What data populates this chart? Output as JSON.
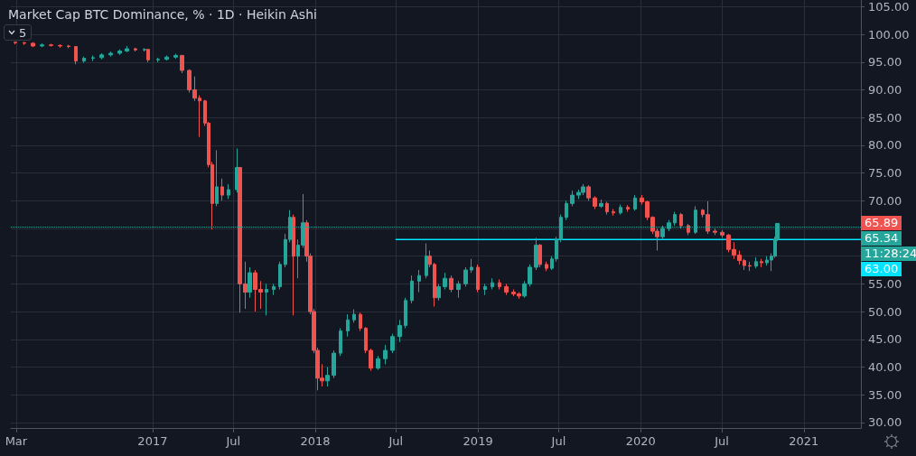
{
  "chart_data": {
    "type": "candlestick",
    "title": "Market Cap BTC Dominance, % · 1D · Heikin Ashi",
    "annotations": [
      "5",
      "11:28:24"
    ],
    "xlim": [
      "2016-02-18",
      "2021-05-09"
    ],
    "xticks": [
      {
        "value": "2016-03-01",
        "label": "Mar"
      },
      {
        "value": "2017-01-01",
        "label": "2017"
      },
      {
        "value": "2017-07-01",
        "label": "Jul"
      },
      {
        "value": "2018-01-01",
        "label": "2018"
      },
      {
        "value": "2018-07-01",
        "label": "Jul"
      },
      {
        "value": "2019-01-01",
        "label": "2019"
      },
      {
        "value": "2019-07-01",
        "label": "Jul"
      },
      {
        "value": "2020-01-01",
        "label": "2020"
      },
      {
        "value": "2020-07-01",
        "label": "Jul"
      },
      {
        "value": "2021-01-01",
        "label": "2021"
      }
    ],
    "ylim": [
      29,
      106.2
    ],
    "yticks": [
      {
        "value": 30,
        "label": "30.00"
      },
      {
        "value": 35,
        "label": "35.00"
      },
      {
        "value": 40,
        "label": "40.00"
      },
      {
        "value": 45,
        "label": "45.00"
      },
      {
        "value": 50,
        "label": "50.00"
      },
      {
        "value": 55,
        "label": "55.00"
      },
      {
        "value": 60,
        "label": null
      },
      {
        "value": 65,
        "label": null
      },
      {
        "value": 70,
        "label": "70.00"
      },
      {
        "value": 75,
        "label": "75.00"
      },
      {
        "value": 80,
        "label": "80.00"
      },
      {
        "value": 85,
        "label": "85.00"
      },
      {
        "value": 90,
        "label": "90.00"
      },
      {
        "value": 95,
        "label": "95.00"
      },
      {
        "value": 100,
        "label": "100.00"
      },
      {
        "value": 105,
        "label": "105.00"
      }
    ],
    "grid": true,
    "ref_lines": [
      {
        "axis": "y",
        "value": 65.34,
        "label": "65.34",
        "color": "#26a69a",
        "line_style": "dotted"
      }
    ],
    "series": [
      {
        "type": "line",
        "x": [
          "2018-07-01",
          "2021-05-09"
        ],
        "values": [
          63,
          63
        ],
        "value_labels": [
          null,
          "63.00"
        ],
        "color": "#00e5ff"
      },
      {
        "x": [
          "2016-02-28",
          "2016-03-19",
          "2016-04-08",
          "2016-04-28",
          "2016-05-18",
          "2016-06-07",
          "2016-06-27",
          "2016-07-13",
          "2016-07-31",
          "2016-08-20",
          "2016-09-09",
          "2016-09-29",
          "2016-10-19",
          "2016-11-04",
          "2016-11-24",
          "2016-12-14",
          "2016-12-22",
          "2017-01-13",
          "2017-02-02",
          "2017-02-22",
          "2017-03-08",
          "2017-03-24",
          "2017-04-05",
          "2017-04-17",
          "2017-04-29",
          "2017-05-07",
          "2017-05-15",
          "2017-05-25",
          "2017-06-06",
          "2017-06-20",
          "2017-07-10",
          "2017-07-16",
          "2017-07-28",
          "2017-08-07",
          "2017-08-19",
          "2017-08-31",
          "2017-09-14",
          "2017-09-30",
          "2017-10-14",
          "2017-10-26",
          "2017-11-05",
          "2017-11-13",
          "2017-11-23",
          "2017-12-05",
          "2017-12-13",
          "2017-12-21",
          "2017-12-29",
          "2018-01-06",
          "2018-01-16",
          "2018-01-28",
          "2018-02-11",
          "2018-02-27",
          "2018-03-15",
          "2018-03-29",
          "2018-04-12",
          "2018-04-24",
          "2018-05-06",
          "2018-05-22",
          "2018-06-07",
          "2018-06-23",
          "2018-07-09",
          "2018-07-23",
          "2018-08-06",
          "2018-08-22",
          "2018-09-07",
          "2018-09-15",
          "2018-09-25",
          "2018-10-05",
          "2018-10-19",
          "2018-11-02",
          "2018-11-18",
          "2018-12-04",
          "2018-12-18",
          "2019-01-01",
          "2019-01-17",
          "2019-02-02",
          "2019-02-18",
          "2019-03-06",
          "2019-03-22",
          "2019-04-03",
          "2019-04-15",
          "2019-04-27",
          "2019-05-11",
          "2019-05-21",
          "2019-06-04",
          "2019-06-16",
          "2019-06-26",
          "2019-07-06",
          "2019-07-18",
          "2019-08-01",
          "2019-08-15",
          "2019-08-25",
          "2019-09-06",
          "2019-09-20",
          "2019-10-04",
          "2019-10-18",
          "2019-11-01",
          "2019-11-17",
          "2019-12-03",
          "2019-12-19",
          "2020-01-04",
          "2020-01-16",
          "2020-01-28",
          "2020-02-07",
          "2020-02-19",
          "2020-03-04",
          "2020-03-18",
          "2020-04-01",
          "2020-04-17",
          "2020-05-03",
          "2020-05-19",
          "2020-05-31",
          "2020-06-16",
          "2020-07-02",
          "2020-07-16",
          "2020-07-28",
          "2020-08-09",
          "2020-08-21",
          "2020-09-02",
          "2020-09-16",
          "2020-09-28",
          "2020-10-10",
          "2020-10-20",
          "2020-10-28",
          "2020-11-03"
        ],
        "value_labels": [
          null,
          null,
          null,
          null,
          null,
          null,
          null,
          null,
          null,
          null,
          null,
          null,
          null,
          null,
          null,
          null,
          null,
          null,
          null,
          null,
          null,
          null,
          null,
          null,
          null,
          null,
          null,
          null,
          null,
          null,
          null,
          null,
          null,
          null,
          null,
          null,
          null,
          null,
          null,
          null,
          null,
          null,
          null,
          null,
          null,
          null,
          null,
          null,
          null,
          null,
          null,
          null,
          null,
          null,
          null,
          null,
          null,
          null,
          null,
          null,
          null,
          null,
          null,
          null,
          null,
          null,
          null,
          null,
          null,
          null,
          null,
          null,
          null,
          null,
          null,
          null,
          null,
          null,
          null,
          null,
          null,
          null,
          null,
          null,
          null,
          null,
          null,
          null,
          null,
          null,
          null,
          null,
          null,
          null,
          null,
          null,
          null,
          null,
          null,
          null,
          null,
          null,
          null,
          null,
          null,
          null,
          null,
          null,
          null,
          null,
          null,
          null,
          null,
          null,
          null,
          null,
          null,
          null,
          null,
          null,
          null,
          null,
          null,
          null,
          "65.89"
        ],
        "ohlc": [
          [
            98.6,
            98.6,
            98.2,
            98.5
          ],
          [
            98.5,
            98.6,
            98.1,
            98.4
          ],
          [
            98.4,
            98.6,
            97.7,
            97.9
          ],
          [
            97.9,
            98.4,
            97.7,
            98.1
          ],
          [
            98.1,
            98.3,
            97.8,
            98.0
          ],
          [
            98.0,
            98.2,
            97.6,
            97.9
          ],
          [
            97.9,
            98.1,
            97.5,
            97.8
          ],
          [
            97.8,
            97.9,
            94.6,
            95.2
          ],
          [
            95.2,
            96.0,
            94.9,
            95.7
          ],
          [
            95.7,
            96.2,
            95.2,
            95.8
          ],
          [
            95.8,
            96.6,
            95.5,
            96.3
          ],
          [
            96.3,
            96.9,
            96.0,
            96.6
          ],
          [
            96.6,
            97.3,
            96.3,
            97.0
          ],
          [
            97.0,
            97.9,
            96.8,
            97.4
          ],
          [
            97.4,
            97.6,
            96.9,
            97.2
          ],
          [
            97.2,
            97.5,
            96.9,
            97.3
          ],
          [
            97.3,
            97.3,
            95.0,
            95.4
          ],
          [
            95.4,
            95.8,
            95.0,
            95.5
          ],
          [
            95.5,
            96.2,
            95.3,
            95.9
          ],
          [
            95.9,
            96.5,
            95.6,
            96.2
          ],
          [
            96.2,
            96.3,
            93.0,
            93.5
          ],
          [
            93.5,
            93.7,
            89.5,
            90.0
          ],
          [
            90.0,
            92.4,
            88.0,
            88.5
          ],
          [
            88.5,
            89.0,
            81.5,
            88.0
          ],
          [
            88.0,
            88.2,
            83.5,
            84.0
          ],
          [
            84.0,
            84.2,
            76.0,
            76.5
          ],
          [
            76.5,
            77.0,
            64.8,
            69.5
          ],
          [
            69.5,
            79.1,
            69.0,
            72.5
          ],
          [
            72.5,
            74.0,
            70.0,
            71.0
          ],
          [
            71.0,
            73.0,
            70.3,
            72.0
          ],
          [
            72.0,
            79.4,
            71.5,
            76.0
          ],
          [
            76.0,
            76.0,
            49.8,
            55.0
          ],
          [
            55.0,
            59.0,
            50.5,
            53.5
          ],
          [
            53.5,
            58.0,
            52.5,
            57.0
          ],
          [
            57.0,
            57.5,
            50.0,
            54.0
          ],
          [
            54.0,
            55.5,
            50.5,
            53.5
          ],
          [
            53.5,
            55.0,
            49.3,
            54.0
          ],
          [
            54.0,
            55.0,
            53.0,
            54.5
          ],
          [
            54.5,
            59.0,
            54.0,
            58.5
          ],
          [
            58.5,
            64.0,
            58.0,
            63.0
          ],
          [
            63.0,
            68.3,
            62.5,
            67.0
          ],
          [
            67.0,
            67.5,
            49.3,
            60.0
          ],
          [
            60.0,
            63.0,
            56.0,
            62.0
          ],
          [
            62.0,
            71.2,
            61.5,
            66.0
          ],
          [
            66.0,
            66.5,
            59.0,
            60.0
          ],
          [
            60.0,
            60.5,
            49.5,
            50.0
          ],
          [
            50.0,
            50.5,
            42.5,
            43.0
          ],
          [
            43.0,
            43.5,
            35.8,
            38.0
          ],
          [
            38.0,
            40.5,
            36.5,
            37.5
          ],
          [
            37.5,
            40.0,
            36.5,
            38.5
          ],
          [
            38.5,
            43.0,
            38.0,
            42.5
          ],
          [
            42.5,
            47.0,
            42.0,
            46.5
          ],
          [
            46.5,
            49.5,
            45.5,
            48.5
          ],
          [
            48.5,
            50.4,
            48.0,
            49.5
          ],
          [
            49.5,
            49.8,
            46.5,
            47.0
          ],
          [
            47.0,
            47.2,
            42.5,
            43.0
          ],
          [
            43.0,
            43.3,
            39.3,
            39.8
          ],
          [
            39.8,
            42.0,
            39.5,
            41.5
          ],
          [
            41.5,
            44.0,
            40.5,
            43.0
          ],
          [
            43.0,
            46.0,
            42.5,
            45.5
          ],
          [
            45.5,
            48.5,
            44.5,
            47.5
          ],
          [
            47.5,
            52.5,
            47.0,
            52.0
          ],
          [
            52.0,
            56.5,
            51.5,
            55.5
          ],
          [
            55.5,
            57.5,
            53.5,
            56.5
          ],
          [
            56.5,
            62.3,
            56.0,
            60.0
          ],
          [
            60.0,
            61.0,
            58.0,
            58.5
          ],
          [
            58.5,
            58.8,
            50.9,
            52.5
          ],
          [
            52.5,
            55.0,
            52.0,
            54.5
          ],
          [
            54.5,
            57.0,
            54.0,
            56.0
          ],
          [
            56.0,
            56.5,
            53.5,
            54.0
          ],
          [
            54.0,
            55.5,
            52.5,
            55.0
          ],
          [
            55.0,
            58.0,
            54.5,
            57.5
          ],
          [
            57.5,
            59.5,
            57.0,
            58.0
          ],
          [
            58.0,
            58.5,
            53.5,
            54.0
          ],
          [
            54.0,
            55.0,
            53.0,
            54.5
          ],
          [
            54.5,
            56.0,
            54.0,
            55.2
          ],
          [
            55.2,
            55.8,
            54.0,
            54.5
          ],
          [
            54.5,
            55.0,
            53.0,
            53.5
          ],
          [
            53.5,
            54.0,
            52.8,
            53.2
          ],
          [
            53.2,
            53.5,
            52.3,
            52.8
          ],
          [
            52.8,
            55.5,
            52.5,
            55.0
          ],
          [
            55.0,
            58.5,
            54.5,
            58.0
          ],
          [
            58.0,
            63.3,
            57.5,
            62.0
          ],
          [
            62.0,
            62.2,
            58.0,
            58.5
          ],
          [
            58.5,
            59.0,
            57.3,
            57.8
          ],
          [
            57.8,
            60.0,
            57.5,
            59.5
          ],
          [
            59.5,
            63.5,
            59.0,
            63.0
          ],
          [
            63.0,
            67.5,
            62.5,
            67.0
          ],
          [
            67.0,
            70.0,
            66.5,
            69.5
          ],
          [
            69.5,
            71.8,
            69.0,
            71.0
          ],
          [
            71.0,
            72.0,
            70.3,
            71.5
          ],
          [
            71.5,
            73.0,
            71.0,
            72.5
          ],
          [
            72.5,
            72.8,
            70.0,
            70.5
          ],
          [
            70.5,
            70.8,
            68.5,
            69.0
          ],
          [
            69.0,
            70.2,
            68.7,
            69.5
          ],
          [
            69.5,
            69.8,
            67.5,
            68.0
          ],
          [
            68.0,
            68.5,
            67.3,
            67.8
          ],
          [
            67.8,
            69.3,
            67.5,
            68.8
          ],
          [
            68.8,
            69.2,
            68.0,
            68.5
          ],
          [
            68.5,
            71.0,
            68.2,
            70.5
          ],
          [
            70.5,
            71.0,
            69.3,
            69.8
          ],
          [
            69.8,
            70.0,
            66.5,
            67.0
          ],
          [
            67.0,
            67.2,
            64.0,
            64.5
          ],
          [
            64.5,
            65.0,
            61.0,
            63.5
          ],
          [
            63.5,
            65.5,
            63.0,
            65.0
          ],
          [
            65.0,
            66.5,
            64.5,
            66.0
          ],
          [
            66.0,
            68.0,
            65.5,
            67.5
          ],
          [
            67.5,
            67.8,
            65.0,
            65.5
          ],
          [
            65.5,
            65.8,
            63.8,
            64.3
          ],
          [
            64.3,
            69.0,
            64.0,
            68.3
          ],
          [
            68.3,
            68.5,
            67.0,
            67.5
          ],
          [
            67.5,
            69.9,
            64.0,
            64.5
          ],
          [
            64.5,
            65.0,
            63.8,
            64.3
          ],
          [
            64.3,
            64.7,
            63.3,
            63.8
          ],
          [
            63.8,
            64.0,
            60.7,
            61.2
          ],
          [
            61.2,
            62.5,
            59.5,
            60.2
          ],
          [
            60.2,
            61.0,
            58.5,
            59.2
          ],
          [
            59.2,
            59.5,
            57.5,
            58.3
          ],
          [
            58.3,
            59.0,
            57.3,
            58.2
          ],
          [
            58.2,
            59.8,
            57.8,
            59.0
          ],
          [
            59.0,
            59.5,
            58.0,
            58.8
          ],
          [
            58.8,
            60.0,
            58.3,
            59.3
          ],
          [
            59.3,
            60.5,
            57.3,
            60.0
          ],
          [
            60.0,
            63.5,
            59.7,
            63.0
          ],
          [
            63.0,
            66.0,
            62.7,
            65.89
          ]
        ]
      }
    ]
  }
}
